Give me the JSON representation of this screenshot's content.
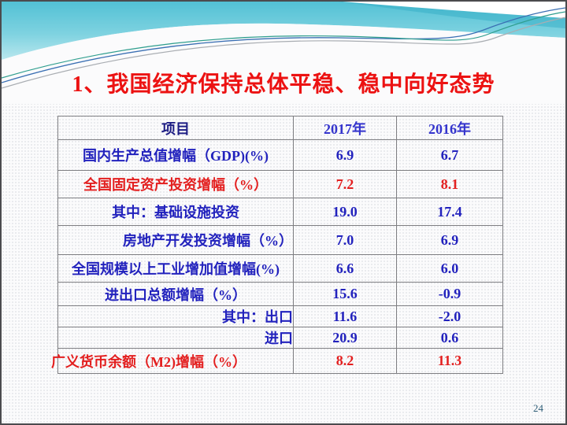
{
  "slide": {
    "title": "1、我国经济保持总体平稳、稳中向好态势",
    "page_number": "24"
  },
  "colors": {
    "title_red": "#ec1212",
    "table_blue": "#2222bd",
    "table_red": "#e31f1f",
    "header_navy": "#1d1d84",
    "header_year_blue": "#3434cd",
    "banner_teal_top": "#55c2d6",
    "banner_teal_bottom": "#b2e5ee",
    "grid_gray": "#7e7e82",
    "page_number_color": "#2e5d76"
  },
  "table": {
    "columns": [
      "项目",
      "2017年",
      "2016年"
    ],
    "rows": [
      {
        "label": "国内生产总值增幅（GDP)(%)",
        "v2017": "6.9",
        "v2016": "6.7",
        "color": "blue",
        "align": "center"
      },
      {
        "label": "全国固定资产投资增幅（%）",
        "v2017": "7.2",
        "v2016": "8.1",
        "color": "red",
        "align": "center"
      },
      {
        "label": "其中：基础设施投资",
        "v2017": "19.0",
        "v2016": "17.4",
        "color": "blue",
        "align": "center"
      },
      {
        "label": "房地产开发投资增幅（%）",
        "v2017": "7.0",
        "v2016": "6.9",
        "color": "blue",
        "align": "right26"
      },
      {
        "label": "全国规模以上工业增加值增幅(%)",
        "v2017": "6.6",
        "v2016": "6.0",
        "color": "blue",
        "align": "center"
      },
      {
        "label": "进出口总额增幅（%）",
        "v2017": "15.6",
        "v2016": "-0.9",
        "color": "blue",
        "align": "center"
      },
      {
        "label": "其中：出口",
        "v2017": "11.6",
        "v2016": "-2.0",
        "color": "blue",
        "align": "right88"
      },
      {
        "label": "进口",
        "v2017": "20.9",
        "v2016": "0.6",
        "color": "blue",
        "align": "right106"
      },
      {
        "label": "广义货币余额（M2)增幅（%）",
        "v2017": "8.2",
        "v2016": "11.3",
        "color": "red",
        "align": "left"
      }
    ]
  }
}
